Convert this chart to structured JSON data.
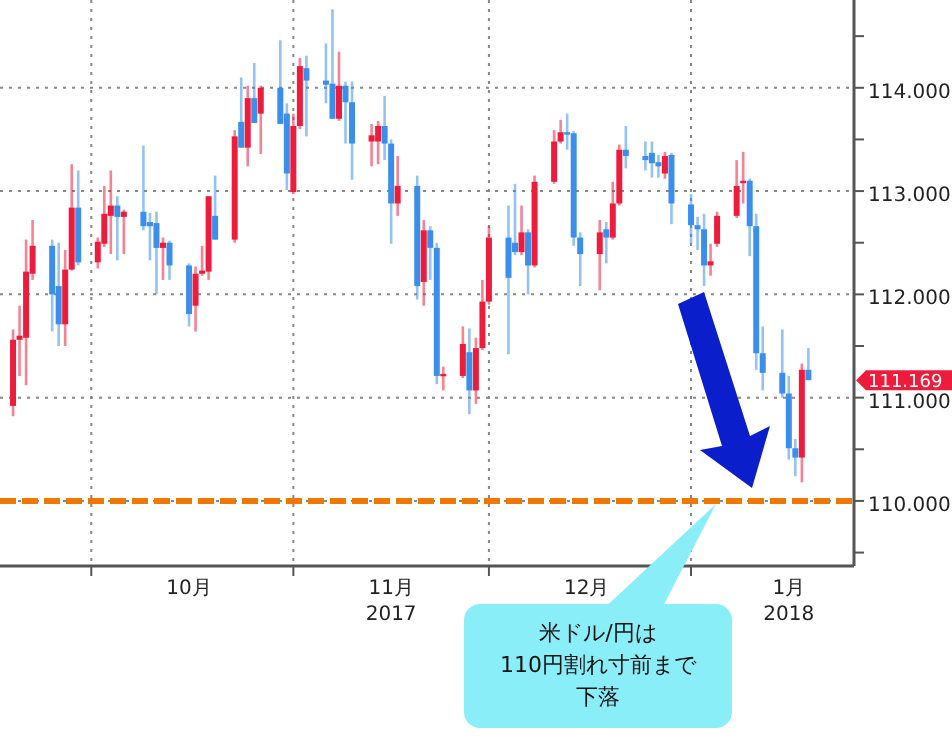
{
  "chart_data": {
    "type": "candlestick",
    "x": [
      "2017-09-19",
      "2017-09-20",
      "2017-09-21",
      "2017-09-22",
      "2017-09-25",
      "2017-09-26",
      "2017-09-27",
      "2017-09-28",
      "2017-09-29",
      "2017-10-02",
      "2017-10-03",
      "2017-10-04",
      "2017-10-05",
      "2017-10-06",
      "2017-10-09",
      "2017-10-10",
      "2017-10-11",
      "2017-10-12",
      "2017-10-13",
      "2017-10-16",
      "2017-10-17",
      "2017-10-18",
      "2017-10-19",
      "2017-10-20",
      "2017-10-23",
      "2017-10-24",
      "2017-10-25",
      "2017-10-26",
      "2017-10-27",
      "2017-10-30",
      "2017-10-31",
      "2017-11-01",
      "2017-11-02",
      "2017-11-03",
      "2017-11-06",
      "2017-11-07",
      "2017-11-08",
      "2017-11-09",
      "2017-11-10",
      "2017-11-13",
      "2017-11-14",
      "2017-11-15",
      "2017-11-16",
      "2017-11-17",
      "2017-11-20",
      "2017-11-21",
      "2017-11-22",
      "2017-11-23",
      "2017-11-24",
      "2017-11-27",
      "2017-11-28",
      "2017-11-29",
      "2017-11-30",
      "2017-12-01",
      "2017-12-04",
      "2017-12-05",
      "2017-12-06",
      "2017-12-07",
      "2017-12-08",
      "2017-12-11",
      "2017-12-12",
      "2017-12-13",
      "2017-12-14",
      "2017-12-15",
      "2017-12-18",
      "2017-12-19",
      "2017-12-20",
      "2017-12-21",
      "2017-12-22",
      "2017-12-25",
      "2017-12-26",
      "2017-12-27",
      "2017-12-28",
      "2017-12-29",
      "2018-01-01",
      "2018-01-02",
      "2018-01-03",
      "2018-01-04",
      "2018-01-05",
      "2018-01-08",
      "2018-01-09",
      "2018-01-10",
      "2018-01-11",
      "2018-01-12",
      "2018-01-15",
      "2018-01-16",
      "2018-01-17",
      "2018-01-18",
      "2018-01-19"
    ],
    "ohlc": [
      [
        110.92,
        111.66,
        110.82,
        111.56
      ],
      [
        111.56,
        111.89,
        111.21,
        111.6
      ],
      [
        111.58,
        112.53,
        111.12,
        112.22
      ],
      [
        112.2,
        112.72,
        112.14,
        112.47
      ],
      [
        112.47,
        112.53,
        111.64,
        112.0
      ],
      [
        112.08,
        112.5,
        111.5,
        111.71
      ],
      [
        111.71,
        112.43,
        111.5,
        112.24
      ],
      [
        112.24,
        113.26,
        112.23,
        112.84
      ],
      [
        112.84,
        113.2,
        112.28,
        112.31
      ],
      [
        112.31,
        112.55,
        112.25,
        112.51
      ],
      [
        112.49,
        113.05,
        112.46,
        112.78
      ],
      [
        112.76,
        113.2,
        112.39,
        112.86
      ],
      [
        112.86,
        112.95,
        112.33,
        112.75
      ],
      [
        112.75,
        112.82,
        112.39,
        112.8
      ],
      [
        112.8,
        113.44,
        112.62,
        112.66
      ],
      [
        112.7,
        112.79,
        112.33,
        112.66
      ],
      [
        112.69,
        112.8,
        112.0,
        112.45
      ],
      [
        112.45,
        112.55,
        112.14,
        112.5
      ],
      [
        112.5,
        112.52,
        112.14,
        112.28
      ],
      [
        112.28,
        112.3,
        111.69,
        111.81
      ],
      [
        111.89,
        112.27,
        111.64,
        112.2
      ],
      [
        112.2,
        112.47,
        112.18,
        112.23
      ],
      [
        112.22,
        112.95,
        112.14,
        112.95
      ],
      [
        112.76,
        113.15,
        112.53,
        112.53
      ],
      [
        112.53,
        113.59,
        112.5,
        113.53
      ],
      [
        113.67,
        114.1,
        113.42,
        113.42
      ],
      [
        113.42,
        114.02,
        113.24,
        113.9
      ],
      [
        113.9,
        114.24,
        113.66,
        113.66
      ],
      [
        113.75,
        114.02,
        113.36,
        114.0
      ],
      [
        114.0,
        114.46,
        113.65,
        113.65
      ],
      [
        113.75,
        113.85,
        113.01,
        113.17
      ],
      [
        112.99,
        113.75,
        112.97,
        113.63
      ],
      [
        113.63,
        114.29,
        113.6,
        114.21
      ],
      [
        114.19,
        114.31,
        113.53,
        114.07
      ],
      [
        114.07,
        114.43,
        113.85,
        114.03
      ],
      [
        114.04,
        114.76,
        113.7,
        113.7
      ],
      [
        113.7,
        114.35,
        113.68,
        114.02
      ],
      [
        114.02,
        114.06,
        113.46,
        113.86
      ],
      [
        113.86,
        114.06,
        113.11,
        113.46
      ],
      [
        113.48,
        113.65,
        113.24,
        113.54
      ],
      [
        113.48,
        113.68,
        113.26,
        113.63
      ],
      [
        113.63,
        113.92,
        113.3,
        113.46
      ],
      [
        113.46,
        113.5,
        112.49,
        112.88
      ],
      [
        112.88,
        113.34,
        112.76,
        113.05
      ],
      [
        113.05,
        113.15,
        111.95,
        112.08
      ],
      [
        112.12,
        112.72,
        111.89,
        112.62
      ],
      [
        112.62,
        112.66,
        112.14,
        112.45
      ],
      [
        112.45,
        112.5,
        111.13,
        111.21
      ],
      [
        111.21,
        111.3,
        111.07,
        111.23
      ],
      [
        111.21,
        111.69,
        111.19,
        111.52
      ],
      [
        111.44,
        111.67,
        110.84,
        111.07
      ],
      [
        111.07,
        111.58,
        110.94,
        111.48
      ],
      [
        111.48,
        112.14,
        111.46,
        111.93
      ],
      [
        111.93,
        112.66,
        111.9,
        112.55
      ],
      [
        112.55,
        112.86,
        111.42,
        112.16
      ],
      [
        112.5,
        113.07,
        112.38,
        112.41
      ],
      [
        112.41,
        112.86,
        112.38,
        112.6
      ],
      [
        112.6,
        112.63,
        112.0,
        112.28
      ],
      [
        112.28,
        113.15,
        112.26,
        113.09
      ],
      [
        113.09,
        113.59,
        113.07,
        113.48
      ],
      [
        113.48,
        113.69,
        113.46,
        113.57
      ],
      [
        113.57,
        113.75,
        113.4,
        113.55
      ],
      [
        113.56,
        113.58,
        112.47,
        112.55
      ],
      [
        112.55,
        112.6,
        112.08,
        112.39
      ],
      [
        112.39,
        112.72,
        112.04,
        112.6
      ],
      [
        112.63,
        112.7,
        112.3,
        112.55
      ],
      [
        112.55,
        113.09,
        112.53,
        112.88
      ],
      [
        112.88,
        113.45,
        112.86,
        113.4
      ],
      [
        113.4,
        113.63,
        113.22,
        113.34
      ],
      [
        113.34,
        113.48,
        113.2,
        113.3
      ],
      [
        113.37,
        113.48,
        113.13,
        113.27
      ],
      [
        113.28,
        113.35,
        113.13,
        113.24
      ],
      [
        113.17,
        113.38,
        113.12,
        113.34
      ],
      [
        113.35,
        113.37,
        112.68,
        112.88
      ],
      [
        112.87,
        112.97,
        112.49,
        112.67
      ],
      [
        112.67,
        112.75,
        112.43,
        112.63
      ],
      [
        112.63,
        112.78,
        112.08,
        112.28
      ],
      [
        112.28,
        112.49,
        112.18,
        112.32
      ],
      [
        112.49,
        112.8,
        112.46,
        112.76
      ],
      [
        112.76,
        113.3,
        112.74,
        113.05
      ],
      [
        113.08,
        113.38,
        112.88,
        113.1
      ],
      [
        113.1,
        113.12,
        112.37,
        112.66
      ],
      [
        112.66,
        112.78,
        111.27,
        111.43
      ],
      [
        111.43,
        111.69,
        111.07,
        111.24
      ],
      [
        111.24,
        111.66,
        111.0,
        111.04
      ],
      [
        111.04,
        111.21,
        110.4,
        110.51
      ],
      [
        110.51,
        110.6,
        110.24,
        110.42
      ],
      [
        110.42,
        111.33,
        110.18,
        111.27
      ],
      [
        111.27,
        111.48,
        111.169,
        111.169
      ]
    ],
    "colors": [
      "#ee1c3c",
      "#ee1c3c",
      "#ee1c3c",
      "#ee1c3c",
      "#3b8fea",
      "#3b8fea",
      "#ee1c3c",
      "#ee1c3c",
      "#3b8fea",
      "#ee1c3c",
      "#ee1c3c",
      "#ee1c3c",
      "#3b8fea",
      "#ee1c3c",
      "#3b8fea",
      "#3b8fea",
      "#3b8fea",
      "#ee1c3c",
      "#3b8fea",
      "#3b8fea",
      "#ee1c3c",
      "#ee1c3c",
      "#ee1c3c",
      "#3b8fea",
      "#ee1c3c",
      "#3b8fea",
      "#ee1c3c",
      "#3b8fea",
      "#ee1c3c",
      "#3b8fea",
      "#3b8fea",
      "#ee1c3c",
      "#ee1c3c",
      "#3b8fea",
      "#3b8fea",
      "#3b8fea",
      "#ee1c3c",
      "#3b8fea",
      "#3b8fea",
      "#ee1c3c",
      "#ee1c3c",
      "#3b8fea",
      "#3b8fea",
      "#ee1c3c",
      "#3b8fea",
      "#ee1c3c",
      "#3b8fea",
      "#3b8fea",
      "#ee1c3c",
      "#ee1c3c",
      "#3b8fea",
      "#ee1c3c",
      "#ee1c3c",
      "#ee1c3c",
      "#3b8fea",
      "#3b8fea",
      "#ee1c3c",
      "#3b8fea",
      "#ee1c3c",
      "#ee1c3c",
      "#ee1c3c",
      "#3b8fea",
      "#3b8fea",
      "#3b8fea",
      "#ee1c3c",
      "#3b8fea",
      "#ee1c3c",
      "#ee1c3c",
      "#3b8fea",
      "#3b8fea",
      "#3b8fea",
      "#3b8fea",
      "#ee1c3c",
      "#3b8fea",
      "#3b8fea",
      "#3b8fea",
      "#3b8fea",
      "#ee1c3c",
      "#ee1c3c",
      "#ee1c3c",
      "#ee1c3c",
      "#3b8fea",
      "#3b8fea",
      "#3b8fea",
      "#3b8fea",
      "#3b8fea",
      "#3b8fea",
      "#ee1c3c",
      "#3b8fea"
    ],
    "xlim": [
      "2017-09-17",
      "2018-01-26"
    ],
    "xticks": [
      {
        "value": "2017-10-01",
        "label": null
      },
      {
        "value": "2017-10-16",
        "label": "10月"
      },
      {
        "value": "2017-11-01",
        "label": null
      },
      {
        "value": "2017-11-16",
        "label": "11月\n2017"
      },
      {
        "value": "2017-12-01",
        "label": null
      },
      {
        "value": "2017-12-16",
        "label": "12月"
      },
      {
        "value": "2018-01-01",
        "label": null
      },
      {
        "value": "2018-01-16",
        "label": "1月\n2018"
      }
    ],
    "ylim": [
      109.37,
      114.85
    ],
    "yticks": [
      {
        "value": 109.5,
        "label": null
      },
      {
        "value": 110,
        "label": "110.000"
      },
      {
        "value": 110.5,
        "label": null
      },
      {
        "value": 111,
        "label": "111.000"
      },
      {
        "value": 111.5,
        "label": null
      },
      {
        "value": 112,
        "label": "112.000"
      },
      {
        "value": 112.5,
        "label": null
      },
      {
        "value": 113,
        "label": "113.000"
      },
      {
        "value": 113.5,
        "label": null
      },
      {
        "value": 114,
        "label": "114.000"
      },
      {
        "value": 114.5,
        "label": null
      }
    ],
    "grid": true,
    "ref_lines": [
      {
        "axis": "y",
        "value": 110,
        "color": "#f07800",
        "line_style": "dashed"
      }
    ],
    "annotations": [
      "米ドル/円は",
      "110円割れ寸前まで",
      "下落",
      "111.169"
    ]
  }
}
